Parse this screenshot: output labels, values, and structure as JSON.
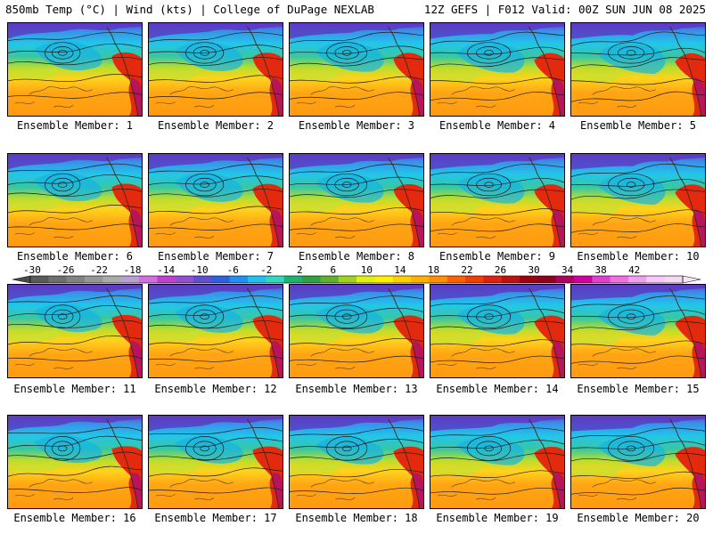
{
  "header": {
    "left": "850mb Temp (°C) | Wind (kts) | College of DuPage NEXLAB",
    "right": "12Z GEFS | F012 Valid: 00Z SUN JUN 08 2025"
  },
  "members": [
    "Ensemble Member: 1",
    "Ensemble Member: 2",
    "Ensemble Member: 3",
    "Ensemble Member: 4",
    "Ensemble Member: 5",
    "Ensemble Member: 6",
    "Ensemble Member: 7",
    "Ensemble Member: 8",
    "Ensemble Member: 9",
    "Ensemble Member: 10",
    "Ensemble Member: 11",
    "Ensemble Member: 12",
    "Ensemble Member: 13",
    "Ensemble Member: 14",
    "Ensemble Member: 15",
    "Ensemble Member: 16",
    "Ensemble Member: 17",
    "Ensemble Member: 18",
    "Ensemble Member: 19",
    "Ensemble Member: 20"
  ],
  "colorbar": {
    "labels": [
      "-30",
      "-26",
      "-22",
      "-18",
      "-14",
      "-10",
      "-6",
      "-2",
      "2",
      "6",
      "10",
      "14",
      "18",
      "22",
      "26",
      "30",
      "34",
      "38",
      "42"
    ],
    "colors": [
      "#5a5a5a",
      "#6e6e6e",
      "#828282",
      "#969696",
      "#aaaaaa",
      "#b8a0d0",
      "#d070e0",
      "#c040d0",
      "#9050d0",
      "#6050d0",
      "#3060e0",
      "#2090f0",
      "#20c0f0",
      "#30d8c0",
      "#20b070",
      "#30a040",
      "#60b030",
      "#a0d020",
      "#e0f010",
      "#fff000",
      "#ffd000",
      "#ffb000",
      "#ff9000",
      "#ff6000",
      "#f04000",
      "#e02010",
      "#c01010",
      "#a00010",
      "#900020",
      "#b00060",
      "#d000a0",
      "#e040d0",
      "#f070e0",
      "#f0a0f0",
      "#f8c8f8",
      "#f4d8f4"
    ]
  }
}
